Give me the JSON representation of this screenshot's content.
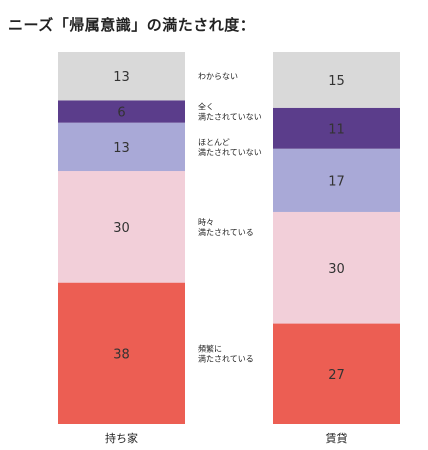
{
  "chart_data": {
    "type": "bar",
    "stacked": true,
    "title": "ニーズ「帰属意識」の満たされ度：",
    "categories": [
      "持ち家",
      "賃貸"
    ],
    "series": [
      {
        "name": "頻繁に\n満たされている",
        "color": "#ec5e53",
        "values": [
          38,
          27
        ]
      },
      {
        "name": "時々\n満たされている",
        "color": "#f2cfd9",
        "values": [
          30,
          30
        ]
      },
      {
        "name": "ほとんど\n満たされていない",
        "color": "#a9a9d7",
        "values": [
          13,
          17
        ]
      },
      {
        "name": "全く\n満たされていない",
        "color": "#5b3d8b",
        "values": [
          6,
          11
        ]
      },
      {
        "name": "わからない",
        "color": "#d9d9d9",
        "values": [
          13,
          15
        ]
      }
    ],
    "ylim": [
      0,
      100
    ],
    "grid": false,
    "legend": "center"
  }
}
